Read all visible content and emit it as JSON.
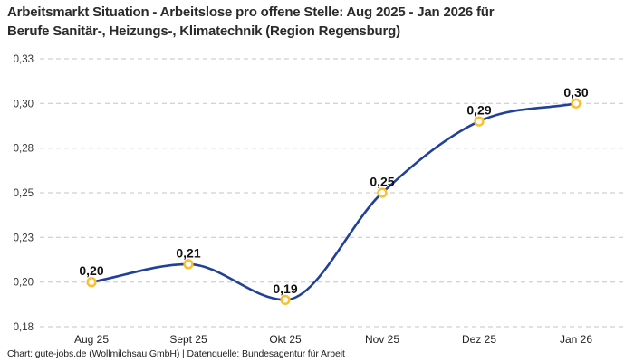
{
  "header": {
    "title": "Arbeitsmarkt Situation - Arbeitslose pro offene Stelle: Aug 2025 - Jan 2026 für\nBerufe Sanitär-, Heizungs-, Klimatechnik (Region Regensburg)"
  },
  "footer": {
    "credit": "Chart: gute-jobs.de (Wollmilchsau GmbH) | Datenquelle: Bundesagentur für Arbeit"
  },
  "chart_data": {
    "type": "line",
    "title": "Arbeitsmarkt Situation - Arbeitslose pro offene Stelle: Aug 2025 - Jan 2026 für Berufe Sanitär-, Heizungs-, Klimatechnik (Region Regensburg)",
    "categories": [
      "Aug 25",
      "Sept 25",
      "Okt 25",
      "Nov 25",
      "Dez 25",
      "Jan 26"
    ],
    "series": [
      {
        "name": "Arbeitslose pro offene Stelle",
        "values": [
          0.2,
          0.21,
          0.19,
          0.25,
          0.29,
          0.3
        ]
      }
    ],
    "point_labels": [
      "0,20",
      "0,21",
      "0,19",
      "0,25",
      "0,29",
      "0,30"
    ],
    "y_ticks": [
      {
        "value": 0.175,
        "label": "0,18"
      },
      {
        "value": 0.2,
        "label": "0,20"
      },
      {
        "value": 0.225,
        "label": "0,23"
      },
      {
        "value": 0.25,
        "label": "0,25"
      },
      {
        "value": 0.275,
        "label": "0,28"
      },
      {
        "value": 0.3,
        "label": "0,30"
      },
      {
        "value": 0.325,
        "label": "0,33"
      }
    ],
    "ylim": [
      0.175,
      0.325
    ],
    "xlabel": "",
    "ylabel": "",
    "legend": "none",
    "grid": "horizontal dashed",
    "curve": "smooth-monotone",
    "colors": {
      "line": "#21409a",
      "marker_ring": "#fcbf2d",
      "marker_fill": "#ffffff",
      "grid": "#c6c6c6",
      "axis_text": "#333333",
      "x_axis_text": "#222222",
      "point_label": "#111111",
      "title": "#2a2a2a"
    }
  }
}
